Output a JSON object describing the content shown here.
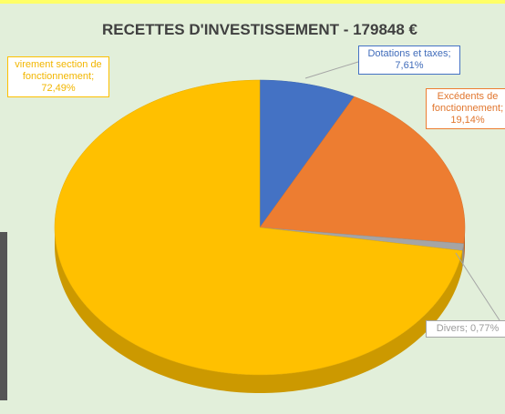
{
  "chart_data": {
    "type": "pie3d",
    "title": "RECETTES D'INVESTISSEMENT - 179848 €",
    "categories": [
      "Dotations et taxes",
      "Excédents de fonctionnement",
      "Divers",
      "virement section de fonctionnement"
    ],
    "values": [
      7.61,
      19.14,
      0.77,
      72.49
    ],
    "value_labels": [
      "7,61%",
      "19,14%",
      "0,77%",
      "72,49%"
    ],
    "label_separator": ";",
    "colors": [
      "#4472c4",
      "#ed7d31",
      "#a5a5a5",
      "#ffc000"
    ]
  }
}
